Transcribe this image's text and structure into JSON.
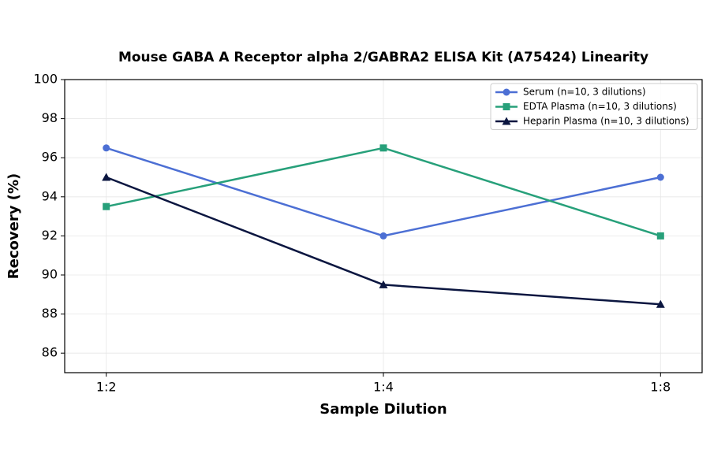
{
  "chart_data": {
    "type": "line",
    "title": "Mouse GABA A Receptor alpha 2/GABRA2 ELISA Kit (A75424) Linearity",
    "x_label": "Sample Dilution",
    "y_label": "Recovery (%)",
    "categories": [
      "1:2",
      "1:4",
      "1:8"
    ],
    "series": [
      {
        "name": "Serum (n=10, 3 dilutions)",
        "color": "#4c6fd4",
        "marker": "circle",
        "values": [
          96.5,
          92,
          95
        ]
      },
      {
        "name": "EDTA Plasma (n=10, 3 dilutions)",
        "color": "#27a07a",
        "marker": "square",
        "values": [
          93.5,
          96.5,
          92
        ]
      },
      {
        "name": "Heparin Plasma (n=10, 3 dilutions)",
        "color": "#0b1640",
        "marker": "triangle",
        "values": [
          95,
          89.5,
          88.5
        ]
      }
    ],
    "ylim": [
      85,
      100
    ],
    "yticks": [
      86,
      88,
      90,
      92,
      94,
      96,
      98,
      100
    ],
    "grid": true,
    "legend": "upper right"
  }
}
